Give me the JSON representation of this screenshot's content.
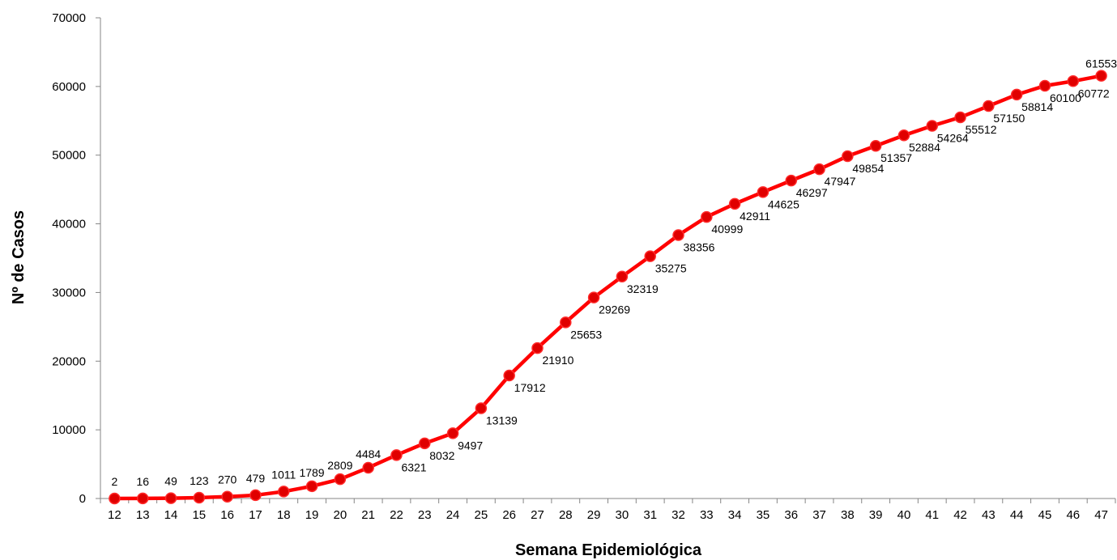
{
  "chart_data": {
    "type": "line",
    "title": "",
    "xlabel": "Semana Epidemiológica",
    "ylabel": "Nº de Casos",
    "x": [
      12,
      13,
      14,
      15,
      16,
      17,
      18,
      19,
      20,
      21,
      22,
      23,
      24,
      25,
      26,
      27,
      28,
      29,
      30,
      31,
      32,
      33,
      34,
      35,
      36,
      37,
      38,
      39,
      40,
      41,
      42,
      43,
      44,
      45,
      46,
      47
    ],
    "series": [
      {
        "values": [
          2,
          16,
          49,
          123,
          270,
          479,
          1011,
          1789,
          2809,
          4484,
          6321,
          8032,
          9497,
          13139,
          17912,
          21910,
          25653,
          29269,
          32319,
          35275,
          38356,
          40999,
          42911,
          44625,
          46297,
          47947,
          49854,
          51357,
          52884,
          54264,
          55512,
          57150,
          58814,
          60100,
          60772,
          61553
        ],
        "color": "#ff0000",
        "marker_color": "#e00000"
      }
    ],
    "ylim": [
      0,
      70000
    ],
    "yticks": [
      0,
      10000,
      20000,
      30000,
      40000,
      50000,
      60000,
      70000
    ],
    "grid": false,
    "legend": "none"
  }
}
